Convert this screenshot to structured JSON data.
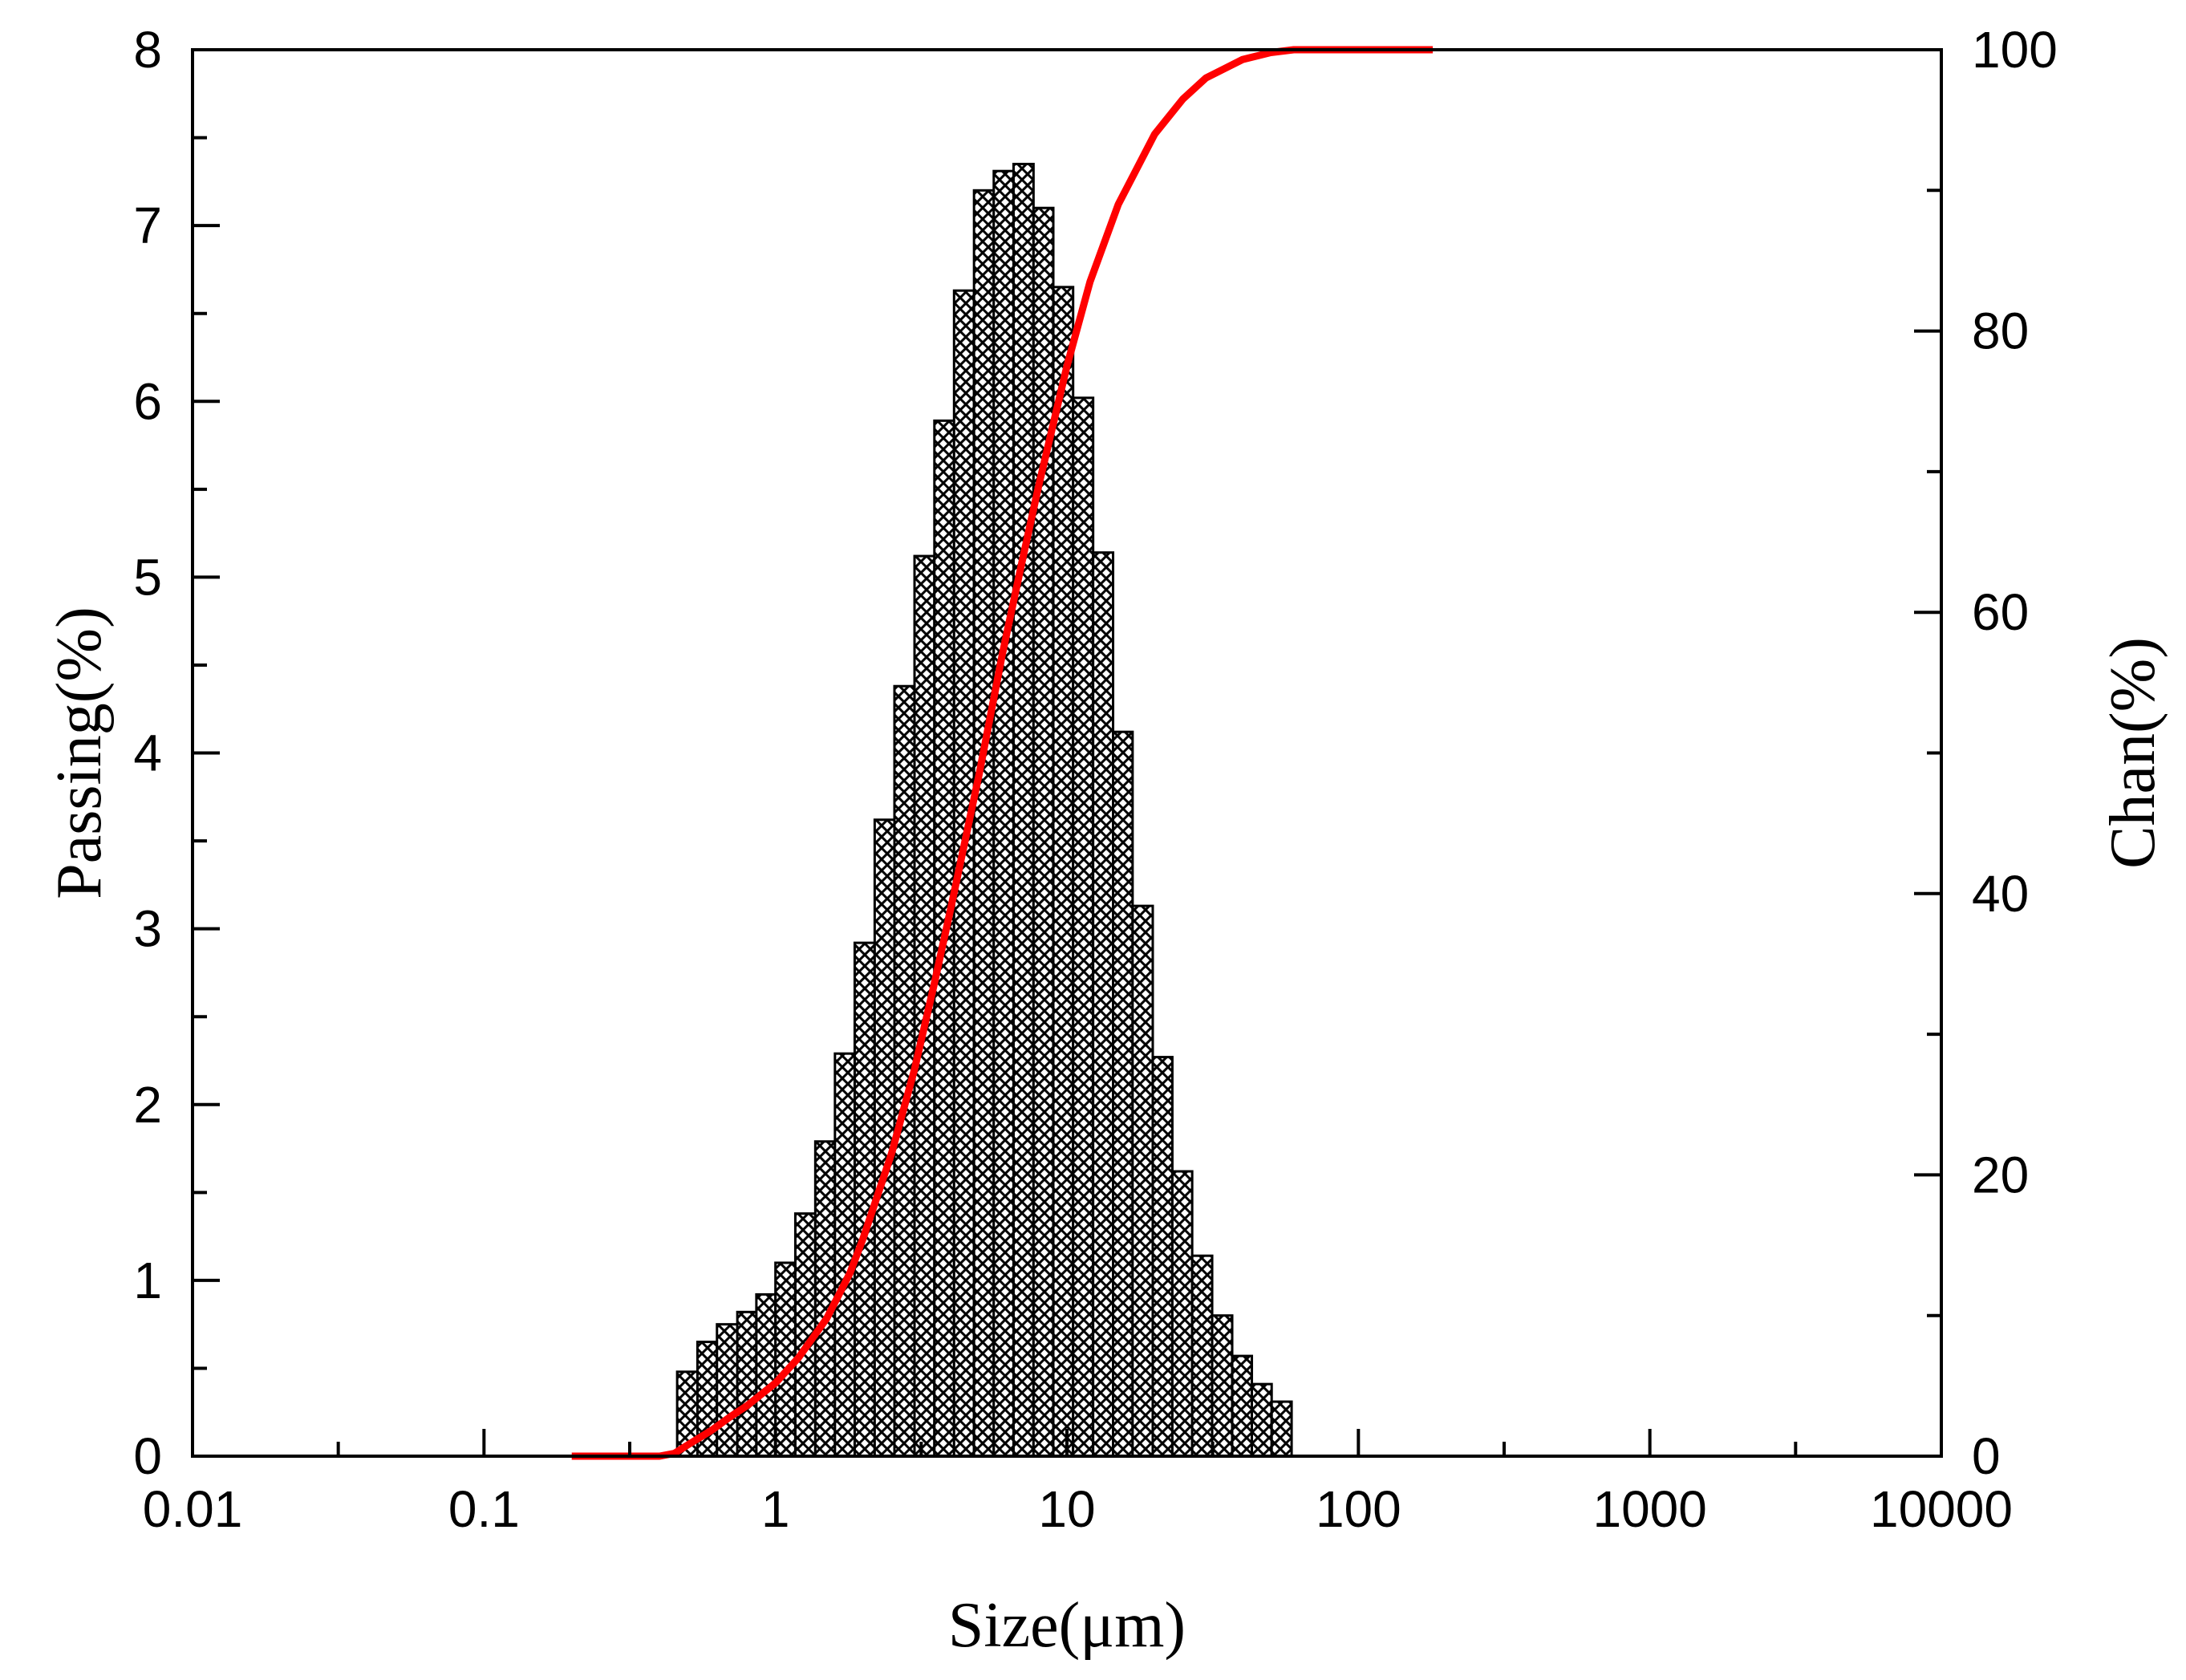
{
  "chart_data": {
    "type": "bar",
    "title": "",
    "xlabel": "Size(μm)",
    "ylabel": "Passing(%)",
    "y2label": "Chan(%)",
    "x_scale": "log",
    "xlim": [
      0.01,
      10000
    ],
    "ylim": [
      0,
      8
    ],
    "y2lim": [
      0,
      100
    ],
    "x_tick_labels": [
      "0.01",
      "0.1",
      "1",
      "10",
      "100",
      "1000",
      "10000"
    ],
    "x_tick_values": [
      0.01,
      0.1,
      1,
      10,
      100,
      1000,
      10000
    ],
    "y_tick_labels": [
      "0",
      "1",
      "2",
      "3",
      "4",
      "5",
      "6",
      "7",
      "8"
    ],
    "y2_tick_labels": [
      "0",
      "20",
      "40",
      "60",
      "80",
      "100"
    ],
    "grid": false,
    "series": [
      {
        "type": "bar",
        "axis": "left",
        "pattern": "crosshatch",
        "bins": [
          {
            "x0": 0.46,
            "x1": 0.54,
            "value": 0.48
          },
          {
            "x0": 0.54,
            "x1": 0.63,
            "value": 0.65
          },
          {
            "x0": 0.63,
            "x1": 0.74,
            "value": 0.75
          },
          {
            "x0": 0.74,
            "x1": 0.86,
            "value": 0.82
          },
          {
            "x0": 0.86,
            "x1": 1.0,
            "value": 0.92
          },
          {
            "x0": 1.0,
            "x1": 1.17,
            "value": 1.1
          },
          {
            "x0": 1.17,
            "x1": 1.37,
            "value": 1.38
          },
          {
            "x0": 1.37,
            "x1": 1.6,
            "value": 1.79
          },
          {
            "x0": 1.6,
            "x1": 1.87,
            "value": 2.29
          },
          {
            "x0": 1.87,
            "x1": 2.19,
            "value": 2.92
          },
          {
            "x0": 2.19,
            "x1": 2.56,
            "value": 3.62
          },
          {
            "x0": 2.56,
            "x1": 3.0,
            "value": 4.38
          },
          {
            "x0": 3.0,
            "x1": 3.51,
            "value": 5.12
          },
          {
            "x0": 3.51,
            "x1": 4.1,
            "value": 5.89
          },
          {
            "x0": 4.1,
            "x1": 4.8,
            "value": 6.63
          },
          {
            "x0": 4.8,
            "x1": 5.61,
            "value": 7.2
          },
          {
            "x0": 5.61,
            "x1": 6.56,
            "value": 7.31
          },
          {
            "x0": 6.56,
            "x1": 7.68,
            "value": 7.35
          },
          {
            "x0": 7.68,
            "x1": 8.98,
            "value": 7.1
          },
          {
            "x0": 8.98,
            "x1": 10.5,
            "value": 6.65
          },
          {
            "x0": 10.5,
            "x1": 12.3,
            "value": 6.02
          },
          {
            "x0": 12.3,
            "x1": 14.4,
            "value": 5.14
          },
          {
            "x0": 14.4,
            "x1": 16.8,
            "value": 4.12
          },
          {
            "x0": 16.8,
            "x1": 19.7,
            "value": 3.13
          },
          {
            "x0": 19.7,
            "x1": 23.0,
            "value": 2.27
          },
          {
            "x0": 23.0,
            "x1": 26.9,
            "value": 1.62
          },
          {
            "x0": 26.9,
            "x1": 31.5,
            "value": 1.14
          },
          {
            "x0": 31.5,
            "x1": 36.9,
            "value": 0.8
          },
          {
            "x0": 36.9,
            "x1": 43.1,
            "value": 0.57
          },
          {
            "x0": 43.1,
            "x1": 50.4,
            "value": 0.41
          },
          {
            "x0": 50.4,
            "x1": 59.0,
            "value": 0.31
          }
        ]
      },
      {
        "type": "line",
        "axis": "right",
        "color": "#ff0000",
        "points": [
          [
            0.2,
            0
          ],
          [
            0.4,
            0
          ],
          [
            0.45,
            0.2
          ],
          [
            0.5,
            0.8
          ],
          [
            0.6,
            1.8
          ],
          [
            0.7,
            2.8
          ],
          [
            0.8,
            3.6
          ],
          [
            1.0,
            5.2
          ],
          [
            1.2,
            7.0
          ],
          [
            1.5,
            9.8
          ],
          [
            1.8,
            13.0
          ],
          [
            2.0,
            15.5
          ],
          [
            2.5,
            21.5
          ],
          [
            3.0,
            27.5
          ],
          [
            3.5,
            33.5
          ],
          [
            4.0,
            39.0
          ],
          [
            5.0,
            48.5
          ],
          [
            6.0,
            57.0
          ],
          [
            7.0,
            63.5
          ],
          [
            8.0,
            69.0
          ],
          [
            9.0,
            73.5
          ],
          [
            10.0,
            77.5
          ],
          [
            12.0,
            83.5
          ],
          [
            15.0,
            89.0
          ],
          [
            20.0,
            94.0
          ],
          [
            25.0,
            96.5
          ],
          [
            30.0,
            98.0
          ],
          [
            40.0,
            99.3
          ],
          [
            50.0,
            99.8
          ],
          [
            60.0,
            100
          ],
          [
            100.0,
            100
          ],
          [
            180.0,
            100
          ]
        ]
      }
    ]
  }
}
